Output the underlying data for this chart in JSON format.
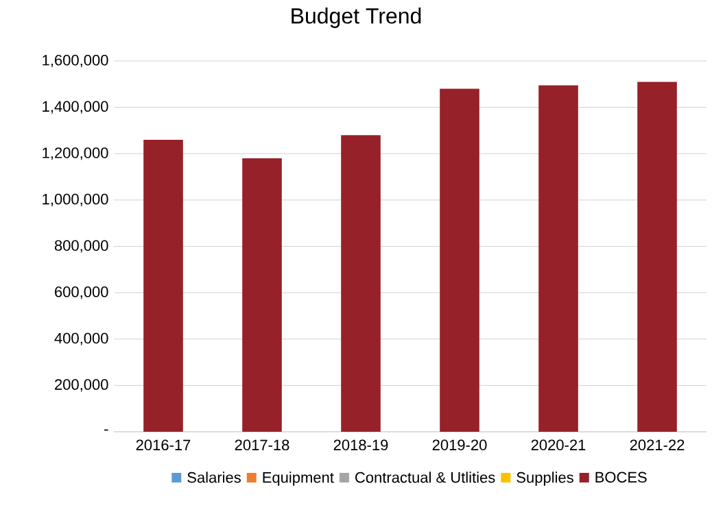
{
  "chart_data": {
    "type": "bar",
    "title": "Budget Trend",
    "stacked": true,
    "categories": [
      "2016-17",
      "2017-18",
      "2018-19",
      "2019-20",
      "2020-21",
      "2021-22"
    ],
    "series": [
      {
        "name": "Salaries",
        "color": "#5b9bd5",
        "values": [
          0,
          0,
          0,
          0,
          0,
          0
        ]
      },
      {
        "name": "Equipment",
        "color": "#ed7d31",
        "values": [
          0,
          0,
          0,
          0,
          0,
          0
        ]
      },
      {
        "name": "Contractual & Utlities",
        "color": "#a5a5a5",
        "values": [
          0,
          0,
          0,
          0,
          0,
          0
        ]
      },
      {
        "name": "Supplies",
        "color": "#ffc000",
        "values": [
          0,
          0,
          0,
          0,
          0,
          0
        ]
      },
      {
        "name": "BOCES",
        "color": "#962128",
        "values": [
          1260000,
          1180000,
          1280000,
          1480000,
          1495000,
          1510000
        ]
      }
    ],
    "ylim": [
      0,
      1600000
    ],
    "yticks": [
      {
        "value": 0,
        "label": "-"
      },
      {
        "value": 200000,
        "label": "200,000"
      },
      {
        "value": 400000,
        "label": "400,000"
      },
      {
        "value": 600000,
        "label": "600,000"
      },
      {
        "value": 800000,
        "label": "800,000"
      },
      {
        "value": 1000000,
        "label": "1,000,000"
      },
      {
        "value": 1200000,
        "label": "1,200,000"
      },
      {
        "value": 1400000,
        "label": "1,400,000"
      },
      {
        "value": 1600000,
        "label": "1,600,000"
      }
    ],
    "grid": "y",
    "legend": "bottom"
  }
}
